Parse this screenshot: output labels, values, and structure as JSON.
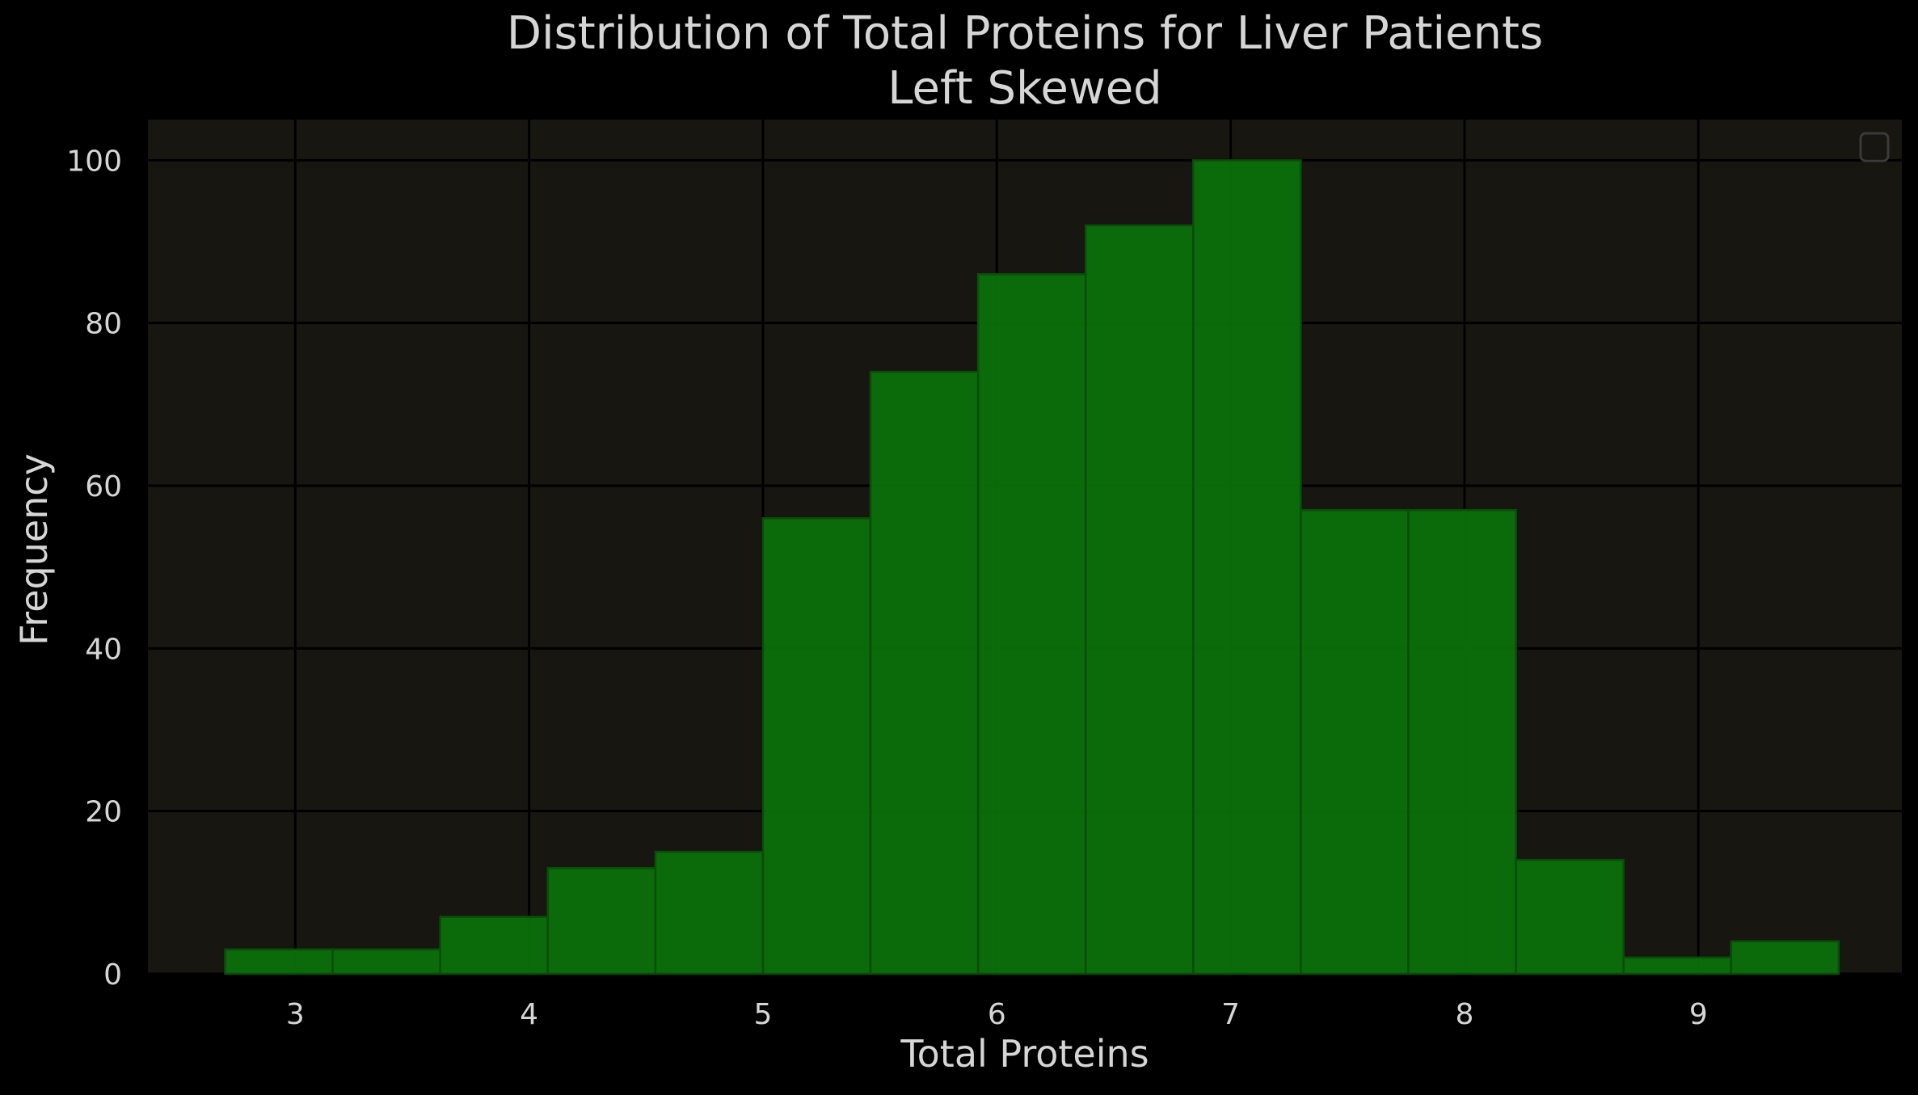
{
  "chart_data": {
    "type": "bar",
    "title": "Distribution of Total Proteins for Liver Patients",
    "subtitle": "Left Skewed",
    "xlabel": "Total Proteins",
    "ylabel": "Frequency",
    "xlim": [
      2.37,
      9.87
    ],
    "ylim": [
      0,
      105
    ],
    "xticks": [
      3,
      4,
      5,
      6,
      7,
      8,
      9
    ],
    "yticks": [
      0,
      20,
      40,
      60,
      80,
      100
    ],
    "bin_edges": [
      2.7,
      3.16,
      3.62,
      4.08,
      4.54,
      5.0,
      5.46,
      5.92,
      6.38,
      6.84,
      7.3,
      7.76,
      8.22,
      8.68,
      9.14,
      9.6
    ],
    "values": [
      3,
      3,
      7,
      13,
      15,
      56,
      74,
      86,
      92,
      100,
      57,
      57,
      14,
      2,
      4
    ],
    "grid": true,
    "legend": "top-right (empty)",
    "colors": {
      "background": "#000000",
      "plot_background": "#171611",
      "bar_fill": "#0b7109",
      "bar_edge": "#0a4d0a",
      "grid": "#000000",
      "text": "#d6d6d6"
    }
  }
}
